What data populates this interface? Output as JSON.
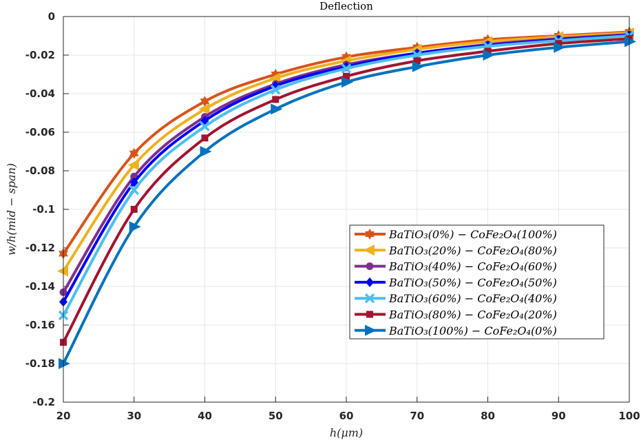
{
  "chart_data": {
    "type": "line",
    "title": "Deflection",
    "xlabel": "h(μm)",
    "ylabel": "w/h(mid − span)",
    "xlim": [
      20,
      100
    ],
    "ylim": [
      -0.2,
      0
    ],
    "xticks": [
      "20",
      "30",
      "40",
      "50",
      "60",
      "70",
      "80",
      "90",
      "100"
    ],
    "yticks": [
      "0",
      "-0.02",
      "-0.04",
      "-0.06",
      "-0.08",
      "-0.1",
      "-0.12",
      "-0.14",
      "-0.16",
      "-0.18",
      "-0.2"
    ],
    "grid": true,
    "legend_position": "right-middle",
    "x": [
      20,
      30,
      40,
      50,
      60,
      70,
      80,
      90,
      100
    ],
    "series": [
      {
        "name": "BaTiO₃(0%) − CoFe₂O₄(100%)",
        "color": "#D95319",
        "marker": "hexagram",
        "values": [
          -0.123,
          -0.071,
          -0.044,
          -0.03,
          -0.021,
          -0.016,
          -0.012,
          -0.01,
          -0.008
        ]
      },
      {
        "name": "BaTiO₃(20%) − CoFe₂O₄(80%)",
        "color": "#EDB120",
        "marker": "triangle-left",
        "values": [
          -0.132,
          -0.077,
          -0.048,
          -0.032,
          -0.023,
          -0.017,
          -0.013,
          -0.0105,
          -0.0085
        ]
      },
      {
        "name": "BaTiO₃(40%) − CoFe₂O₄(60%)",
        "color": "#7E2F8E",
        "marker": "circle",
        "values": [
          -0.143,
          -0.083,
          -0.052,
          -0.035,
          -0.025,
          -0.019,
          -0.0145,
          -0.0115,
          -0.0093
        ]
      },
      {
        "name": "BaTiO₃(50%) − CoFe₂O₄(50%)",
        "color": "#0000FF",
        "marker": "diamond",
        "values": [
          -0.148,
          -0.086,
          -0.054,
          -0.036,
          -0.026,
          -0.019,
          -0.015,
          -0.012,
          -0.0097
        ]
      },
      {
        "name": "BaTiO₃(60%) − CoFe₂O₄(40%)",
        "color": "#4DBEEE",
        "marker": "x",
        "values": [
          -0.155,
          -0.09,
          -0.057,
          -0.038,
          -0.027,
          -0.02,
          -0.0155,
          -0.0125,
          -0.01
        ]
      },
      {
        "name": "BaTiO₃(80%) − CoFe₂O₄(20%)",
        "color": "#A2142F",
        "marker": "square",
        "values": [
          -0.169,
          -0.1,
          -0.063,
          -0.043,
          -0.031,
          -0.023,
          -0.018,
          -0.014,
          -0.0115
        ]
      },
      {
        "name": "BaTiO₃(100%) − CoFe₂O₄(0%)",
        "color": "#0072BD",
        "marker": "triangle-right",
        "values": [
          -0.18,
          -0.109,
          -0.07,
          -0.048,
          -0.034,
          -0.026,
          -0.02,
          -0.016,
          -0.013
        ]
      }
    ]
  }
}
